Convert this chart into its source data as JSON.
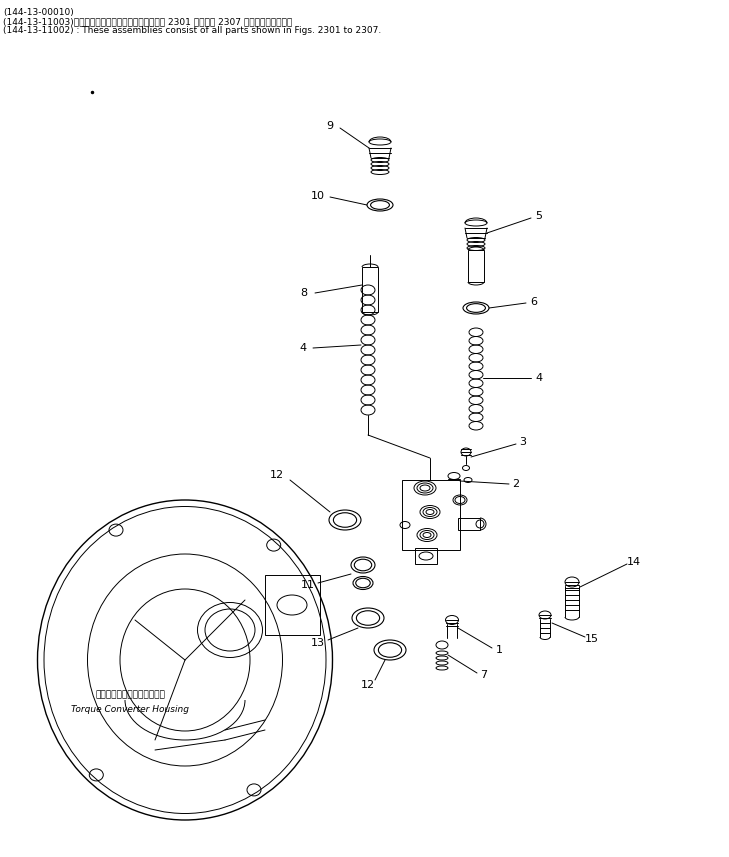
{
  "bg_color": "#ffffff",
  "line_color": "#000000",
  "title_lines": [
    "(144-13-00010)",
    "(144-13-11003)　これらのアセンブリの構成部品は第 2301 図から第 2307 図までございます。",
    "(144-13-11002) : These assemblies consist of all parts shown in Figs. 2301 to 2307."
  ],
  "converter_label_jp": "トルクコンバータハウジング",
  "converter_label_en": "Torque Converter Housing"
}
